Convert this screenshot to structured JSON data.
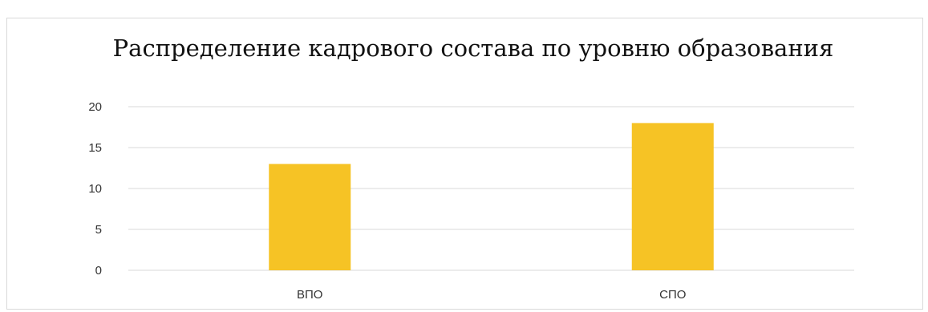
{
  "chart_data": {
    "type": "bar",
    "title": "Распределение кадрового состава по уровню образования",
    "categories": [
      "ВПО",
      "СПО"
    ],
    "values": [
      13,
      18
    ],
    "xlabel": "",
    "ylabel": "",
    "ylim": [
      0,
      20
    ],
    "yticks": [
      0,
      5,
      10,
      15,
      20
    ],
    "grid": true,
    "legend": "none",
    "bar_color": "#F6C325",
    "grid_color": "#d9d9d9"
  }
}
